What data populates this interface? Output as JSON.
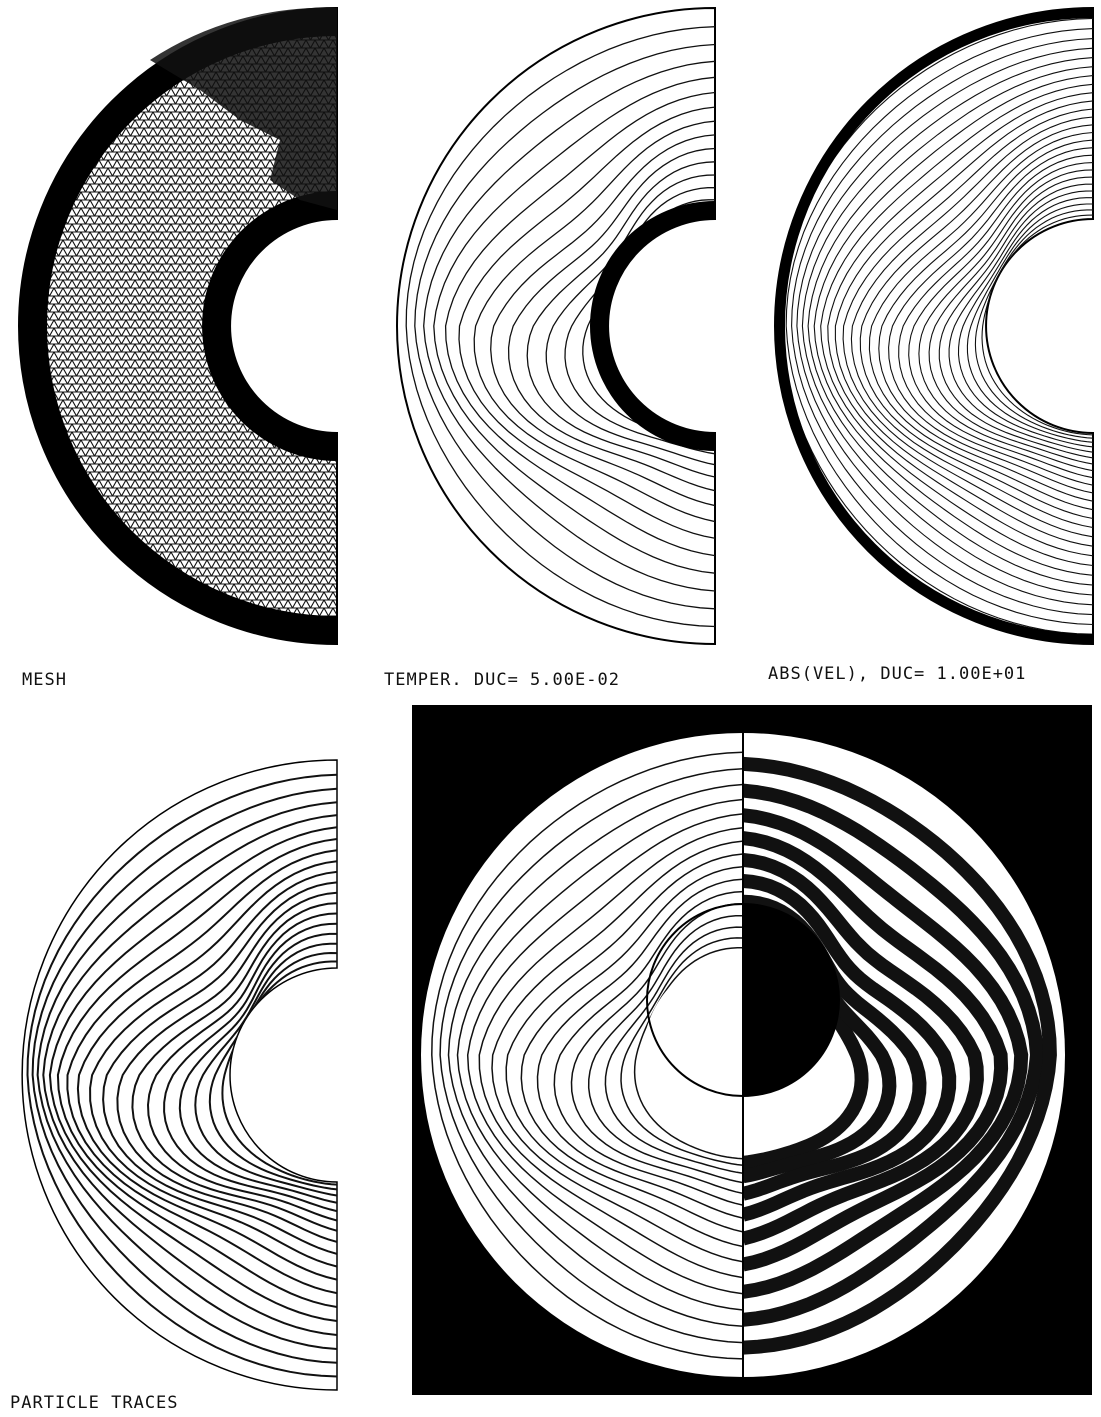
{
  "panels": [
    {
      "label": "MESH"
    },
    {
      "label": "TEMPER. DUC= 5.00E-02"
    },
    {
      "label": "ABS(VEL), DUC= 1.00E+01"
    },
    {
      "label": "PARTICLE TRACES"
    }
  ]
}
